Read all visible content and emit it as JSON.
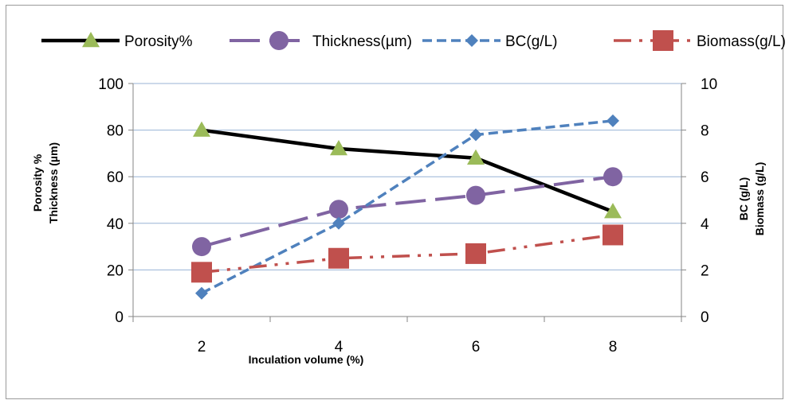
{
  "chart_data": {
    "type": "line",
    "x": [
      2,
      4,
      6,
      8
    ],
    "categories": [
      "2",
      "4",
      "6",
      "8"
    ],
    "xlabel": "Inculation volume (%)",
    "ylabel_left": [
      "Porosity %",
      "Thickness (µm)"
    ],
    "ylabel_right": [
      "BC (g/L)",
      "Biomass (g/L)"
    ],
    "ylim_left": [
      0,
      100
    ],
    "ylim_right": [
      0,
      10
    ],
    "yticks_left": [
      "0",
      "20",
      "40",
      "60",
      "80",
      "100"
    ],
    "yticks_right": [
      "0",
      "2",
      "4",
      "6",
      "8",
      "10"
    ],
    "grid": true,
    "legend_position": "top",
    "series": [
      {
        "name": "Porosity%",
        "axis": "left",
        "values": [
          80,
          72,
          68,
          45
        ],
        "line_color": "#000000",
        "marker": "triangle",
        "marker_color": "#9bbb59",
        "dash": "solid"
      },
      {
        "name": "Thickness(µm)",
        "axis": "left",
        "values": [
          30,
          46,
          52,
          60
        ],
        "line_color": "#8064a2",
        "marker": "circle",
        "marker_color": "#8064a2",
        "dash": "long-dash"
      },
      {
        "name": "BC(g/L)",
        "axis": "right",
        "values": [
          1.0,
          4.0,
          7.8,
          8.4
        ],
        "line_color": "#4f81bd",
        "marker": "diamond",
        "marker_color": "#4f81bd",
        "dash": "dash"
      },
      {
        "name": "Biomass(g/L)",
        "axis": "right",
        "values": [
          1.9,
          2.5,
          2.7,
          3.5
        ],
        "line_color": "#c0504d",
        "marker": "square",
        "marker_color": "#c0504d",
        "dash": "dash-dot-dot"
      }
    ]
  }
}
